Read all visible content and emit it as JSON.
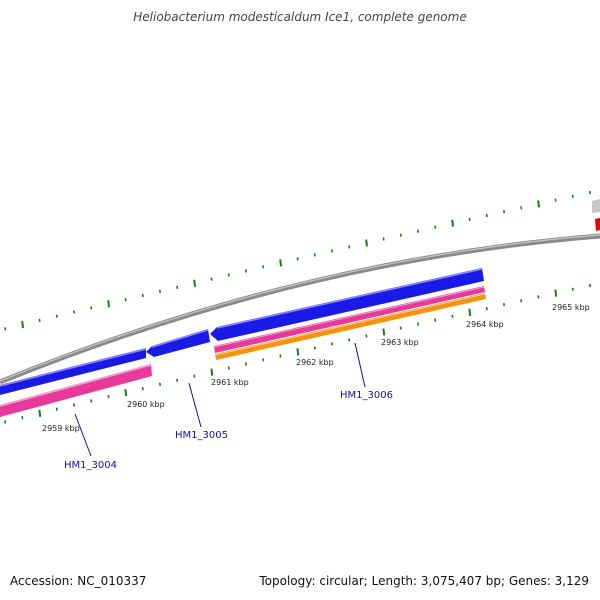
{
  "title": "Heliobacterium modesticaldum Ice1, complete genome",
  "footer": {
    "accession": "Accession: NC_010337",
    "info": "Topology: circular; Length: 3,075,407 bp; Genes: 3,129"
  },
  "scale": {
    "labels": [
      "2959 kbp",
      "2960 kbp",
      "2961 kbp",
      "2962 kbp",
      "2963 kbp",
      "2964 kbp",
      "2965 kbp"
    ]
  },
  "genes": [
    {
      "label": "HM1_3004"
    },
    {
      "label": "HM1_3005"
    },
    {
      "label": "HM1_3006"
    }
  ],
  "colors": {
    "backbone": "#8a8a8a",
    "cds": "#1a1ae6",
    "gene": "#e6399a",
    "rna": "#f5930f",
    "partial_gene": "#e60000",
    "partial_grey": "#c8c8c8",
    "tick": "#1b7a1b",
    "gene_label": "#1010a0"
  }
}
